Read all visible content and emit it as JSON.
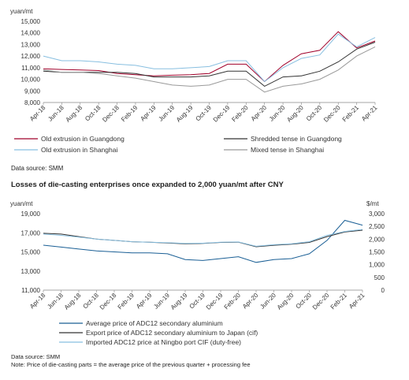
{
  "chart_data": [
    {
      "type": "line",
      "ylabel": "yuan/mt",
      "ylim": [
        8000,
        15000
      ],
      "yticks": [
        8000,
        9000,
        10000,
        11000,
        12000,
        13000,
        14000,
        15000
      ],
      "ytick_labels": [
        "8,000",
        "9,000",
        "10,000",
        "11,000",
        "12,000",
        "13,000",
        "14,000",
        "15,000"
      ],
      "categories": [
        "Apr-18",
        "Jun-18",
        "Aug-18",
        "Oct-18",
        "Dec-18",
        "Feb-19",
        "Apr-19",
        "Jun-19",
        "Aug-19",
        "Oct-19",
        "Dec-19",
        "Feb-20",
        "Apr-20",
        "Jun-20",
        "Aug-20",
        "Oct-20",
        "Dec-20",
        "Feb-21",
        "Apr-21"
      ],
      "grid": false,
      "legend_position": "bottom",
      "series": [
        {
          "name": "Old extrusion in Guangdong",
          "color": "#a0002a",
          "values": [
            10900,
            10850,
            10800,
            10750,
            10500,
            10400,
            10300,
            10350,
            10400,
            10500,
            11300,
            11300,
            9800,
            11200,
            12200,
            12500,
            14100,
            12700,
            13300
          ]
        },
        {
          "name": "Shredded tense in Guangdong",
          "color": "#333333",
          "values": [
            10700,
            10600,
            10600,
            10600,
            10600,
            10500,
            10200,
            10200,
            10200,
            10300,
            10700,
            10700,
            9400,
            10200,
            10300,
            10700,
            11500,
            12600,
            13200
          ]
        },
        {
          "name": "Old extrusion in Shanghai",
          "color": "#88bfe0",
          "values": [
            12000,
            11600,
            11600,
            11500,
            11300,
            11200,
            10900,
            10900,
            11000,
            11100,
            11600,
            11600,
            9800,
            11000,
            11800,
            12100,
            13900,
            12800,
            13600
          ]
        },
        {
          "name": "Mixed tense in Shanghai",
          "color": "#999999",
          "values": [
            10800,
            10600,
            10600,
            10500,
            10300,
            10100,
            9800,
            9500,
            9400,
            9500,
            10000,
            10000,
            8900,
            9400,
            9600,
            10000,
            10800,
            12000,
            12800
          ]
        }
      ]
    },
    {
      "type": "line",
      "title": "Losses of die-casting enterprises once expanded to 2,000 yuan/mt after CNY",
      "ylabel": "yuan/mt",
      "y2label": "$/mt",
      "ylim": [
        11000,
        19000
      ],
      "yticks": [
        11000,
        13000,
        15000,
        17000,
        19000
      ],
      "ytick_labels": [
        "11,000",
        "13,000",
        "15,000",
        "17,000",
        "19,000"
      ],
      "y2lim": [
        0,
        3000
      ],
      "y2ticks": [
        0,
        500,
        1000,
        1500,
        2000,
        2500,
        3000
      ],
      "y2tick_labels": [
        "0",
        "500",
        "1,000",
        "1,500",
        "2,000",
        "2,500",
        "3,000"
      ],
      "categories": [
        "Apr-18",
        "Jun-18",
        "Aug-18",
        "Oct-18",
        "Dec-18",
        "Feb-19",
        "Apr-19",
        "Jun-19",
        "Aug-19",
        "Oct-19",
        "Dec-19",
        "Feb-20",
        "Apr-20",
        "Jun-20",
        "Aug-20",
        "Oct-20",
        "Dec-20",
        "Feb-21",
        "Apr-21"
      ],
      "grid": false,
      "legend_position": "bottom",
      "series": [
        {
          "name": "Average price of ADC12 secondary aluminium",
          "color": "#1a5f95",
          "axis": "left",
          "values": [
            15700,
            15500,
            15300,
            15100,
            15000,
            14900,
            14900,
            14800,
            14200,
            14100,
            14300,
            14500,
            13900,
            14200,
            14300,
            14800,
            16200,
            18300,
            17800
          ]
        },
        {
          "name": "Export price of ADC12 secondary aluminium to Japan (cif)",
          "color": "#333333",
          "axis": "right",
          "values": [
            2230,
            2200,
            2100,
            2000,
            1950,
            1900,
            1880,
            1850,
            1820,
            1830,
            1870,
            1880,
            1700,
            1760,
            1800,
            1870,
            2100,
            2280,
            2350
          ]
        },
        {
          "name": "Imported ADC12 price at Ningbo port CIF (duty-free)",
          "color": "#88bfe0",
          "axis": "right",
          "values": [
            2200,
            2150,
            2080,
            2000,
            1950,
            1900,
            1880,
            1860,
            1830,
            1840,
            1880,
            1890,
            1720,
            1780,
            1820,
            1900,
            2150,
            2300,
            2380
          ]
        }
      ]
    }
  ],
  "source1": "Data source: SMM",
  "source2": "Data source: SMM",
  "note": "Note: Price of die-casting parts = the average price of the previous quarter + processing fee"
}
